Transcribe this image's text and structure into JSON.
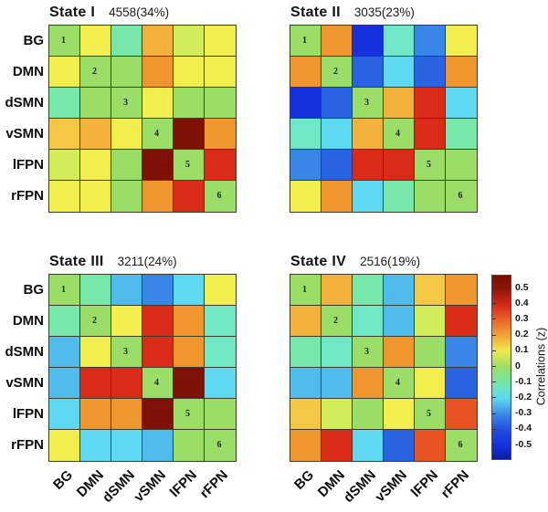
{
  "figure": {
    "background": "#ffffff",
    "grid_line_color": "#3c3c2a"
  },
  "axis_labels": [
    "BG",
    "DMN",
    "dSMN",
    "vSMN",
    "lFPN",
    "rFPN"
  ],
  "palette": {
    "dr": {
      "hex": "#7E1005",
      "z": 0.55
    },
    "r": {
      "hex": "#DA2A18",
      "z": 0.45
    },
    "ro": {
      "hex": "#E85323",
      "z": 0.35
    },
    "o": {
      "hex": "#EF962F",
      "z": 0.3
    },
    "oy": {
      "hex": "#F2B13A",
      "z": 0.2
    },
    "yo": {
      "hex": "#F4C745",
      "z": 0.15
    },
    "y": {
      "hex": "#F1EE4E",
      "z": 0.1
    },
    "yg": {
      "hex": "#D3EC59",
      "z": 0.05
    },
    "g": {
      "hex": "#9ADE68",
      "z": 0.0
    },
    "ag": {
      "hex": "#77E8AA",
      "z": -0.07
    },
    "aq": {
      "hex": "#70E8C8",
      "z": -0.12
    },
    "c": {
      "hex": "#5FD8F2",
      "z": -0.2
    },
    "cb": {
      "hex": "#4FBCEC",
      "z": -0.25
    },
    "b": {
      "hex": "#3A85E8",
      "z": -0.3
    },
    "b2": {
      "hex": "#2A63E2",
      "z": -0.35
    },
    "db": {
      "hex": "#1530DC",
      "z": -0.45
    }
  },
  "colorbar": {
    "label": "Correlations (z)",
    "ticks": [
      "0.5",
      "0.4",
      "0.3",
      "0.2",
      "0.1",
      "0",
      "-0.1",
      "-0.2",
      "-0.3",
      "-0.4",
      "-0.5"
    ],
    "range": [
      -0.587,
      0.587
    ],
    "gradient_stops": [
      [
        "0%",
        "#7A0D04"
      ],
      [
        "7%",
        "#8C1507"
      ],
      [
        "16%",
        "#D7281A"
      ],
      [
        "24%",
        "#E96428"
      ],
      [
        "33%",
        "#F0A738"
      ],
      [
        "41%",
        "#EFEA4D"
      ],
      [
        "50%",
        "#9ADE68"
      ],
      [
        "58%",
        "#74E7A8"
      ],
      [
        "67%",
        "#5FD8F2"
      ],
      [
        "76%",
        "#3A85E8"
      ],
      [
        "85%",
        "#2148DE"
      ],
      [
        "93%",
        "#1530DC"
      ],
      [
        "100%",
        "#0A1C9E"
      ]
    ]
  },
  "chart_data": [
    {
      "type": "heatmap",
      "title": "State I",
      "count_label": "4558(34%)",
      "x_labels": [
        "BG",
        "DMN",
        "dSMN",
        "vSMN",
        "lFPN",
        "rFPN"
      ],
      "y_labels": [
        "BG",
        "DMN",
        "dSMN",
        "vSMN",
        "lFPN",
        "rFPN"
      ],
      "diagonal_numbers": [
        1,
        2,
        3,
        4,
        5,
        6
      ],
      "cell_colors": [
        [
          "g",
          "y",
          "ag",
          "oy",
          "yg",
          "y"
        ],
        [
          "y",
          "g",
          "g",
          "o",
          "y",
          "y"
        ],
        [
          "ag",
          "g",
          "g",
          "y",
          "g",
          "g"
        ],
        [
          "yo",
          "oy",
          "y",
          "g",
          "dr",
          "o"
        ],
        [
          "yg",
          "y",
          "g",
          "dr",
          "g",
          "r"
        ],
        [
          "y",
          "y",
          "g",
          "o",
          "r",
          "g"
        ]
      ],
      "z_values": [
        [
          0,
          0.1,
          -0.07,
          0.2,
          0.05,
          0.1
        ],
        [
          0.1,
          0,
          0,
          0.3,
          0.1,
          0.1
        ],
        [
          -0.07,
          0,
          0,
          0.1,
          0,
          0
        ],
        [
          0.15,
          0.2,
          0.1,
          0,
          0.55,
          0.3
        ],
        [
          0.05,
          0.1,
          0,
          0.55,
          0,
          0.45
        ],
        [
          0.1,
          0.1,
          0,
          0.3,
          0.45,
          0
        ]
      ]
    },
    {
      "type": "heatmap",
      "title": "State II",
      "count_label": "3035(23%)",
      "x_labels": [
        "BG",
        "DMN",
        "dSMN",
        "vSMN",
        "lFPN",
        "rFPN"
      ],
      "y_labels": [
        "BG",
        "DMN",
        "dSMN",
        "vSMN",
        "lFPN",
        "rFPN"
      ],
      "diagonal_numbers": [
        1,
        2,
        3,
        4,
        5,
        6
      ],
      "cell_colors": [
        [
          "g",
          "o",
          "db",
          "aq",
          "b",
          "y"
        ],
        [
          "o",
          "g",
          "b2",
          "c",
          "b2",
          "o"
        ],
        [
          "db",
          "b2",
          "g",
          "oy",
          "r",
          "c"
        ],
        [
          "aq",
          "c",
          "oy",
          "g",
          "r",
          "ag"
        ],
        [
          "b",
          "b2",
          "r",
          "r",
          "g",
          "g"
        ],
        [
          "y",
          "o",
          "c",
          "ag",
          "g",
          "g"
        ]
      ],
      "z_values": [
        [
          0,
          0.3,
          -0.45,
          -0.12,
          -0.3,
          0.1
        ],
        [
          0.3,
          0,
          -0.35,
          -0.2,
          -0.35,
          0.3
        ],
        [
          -0.45,
          -0.35,
          0,
          0.2,
          0.45,
          -0.2
        ],
        [
          -0.12,
          -0.2,
          0.2,
          0,
          0.45,
          -0.07
        ],
        [
          -0.3,
          -0.35,
          0.45,
          0.45,
          0,
          0
        ],
        [
          0.1,
          0.3,
          -0.2,
          -0.07,
          0,
          0
        ]
      ]
    },
    {
      "type": "heatmap",
      "title": "State III",
      "count_label": "3211(24%)",
      "x_labels": [
        "BG",
        "DMN",
        "dSMN",
        "vSMN",
        "lFPN",
        "rFPN"
      ],
      "y_labels": [
        "BG",
        "DMN",
        "dSMN",
        "vSMN",
        "lFPN",
        "rFPN"
      ],
      "diagonal_numbers": [
        1,
        2,
        3,
        4,
        5,
        6
      ],
      "cell_colors": [
        [
          "g",
          "ag",
          "cb",
          "b",
          "c",
          "y"
        ],
        [
          "ag",
          "g",
          "y",
          "r",
          "o",
          "aq"
        ],
        [
          "cb",
          "y",
          "g",
          "r",
          "o",
          "aq"
        ],
        [
          "cb",
          "r",
          "r",
          "g",
          "dr",
          "c"
        ],
        [
          "c",
          "o",
          "o",
          "dr",
          "g",
          "g"
        ],
        [
          "y",
          "c",
          "c",
          "cb",
          "g",
          "g"
        ]
      ],
      "z_values": [
        [
          0,
          -0.07,
          -0.25,
          -0.3,
          -0.2,
          0.1
        ],
        [
          -0.07,
          0,
          0.1,
          0.45,
          0.3,
          -0.12
        ],
        [
          -0.25,
          0.1,
          0,
          0.45,
          0.3,
          -0.12
        ],
        [
          -0.25,
          0.45,
          0.45,
          0,
          0.55,
          -0.2
        ],
        [
          -0.2,
          0.3,
          0.3,
          0.55,
          0,
          0
        ],
        [
          0.1,
          -0.2,
          -0.2,
          -0.25,
          0,
          0
        ]
      ]
    },
    {
      "type": "heatmap",
      "title": "State IV",
      "count_label": "2516(19%)",
      "x_labels": [
        "BG",
        "DMN",
        "dSMN",
        "vSMN",
        "lFPN",
        "rFPN"
      ],
      "y_labels": [
        "BG",
        "DMN",
        "dSMN",
        "vSMN",
        "lFPN",
        "rFPN"
      ],
      "diagonal_numbers": [
        1,
        2,
        3,
        4,
        5,
        6
      ],
      "cell_colors": [
        [
          "g",
          "oy",
          "ag",
          "cb",
          "yo",
          "o"
        ],
        [
          "oy",
          "g",
          "aq",
          "cb",
          "yg",
          "r"
        ],
        [
          "ag",
          "aq",
          "g",
          "o",
          "g",
          "b"
        ],
        [
          "cb",
          "cb",
          "o",
          "g",
          "y",
          "b2"
        ],
        [
          "yo",
          "yg",
          "g",
          "y",
          "g",
          "ro"
        ],
        [
          "o",
          "r",
          "c",
          "b2",
          "ro",
          "g"
        ]
      ],
      "z_values": [
        [
          0,
          0.2,
          -0.07,
          -0.25,
          0.15,
          0.3
        ],
        [
          0.2,
          0,
          -0.12,
          -0.25,
          0.05,
          0.45
        ],
        [
          -0.07,
          -0.12,
          0,
          0.3,
          0,
          -0.3
        ],
        [
          -0.25,
          -0.25,
          0.3,
          0,
          0.1,
          -0.35
        ],
        [
          0.15,
          0.05,
          0,
          0.1,
          0,
          0.35
        ],
        [
          0.3,
          0.45,
          -0.2,
          -0.35,
          0.35,
          0
        ]
      ]
    }
  ]
}
